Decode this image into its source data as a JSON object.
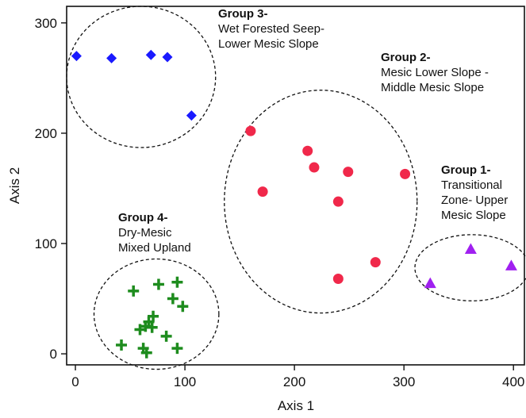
{
  "chart_data": {
    "type": "scatter",
    "title": "",
    "xlabel": "Axis 1",
    "ylabel": "Axis 2",
    "xlim": [
      -8,
      410
    ],
    "ylim": [
      -10,
      315
    ],
    "xticks": [
      "0",
      "100",
      "200",
      "300",
      "400"
    ],
    "yticks": [
      "0",
      "100",
      "200",
      "300"
    ],
    "grid": false,
    "legend": "none",
    "series": [
      {
        "key": "group1",
        "marker": "triangle",
        "color": "#a020f0",
        "title": "Group 1-",
        "lines": [
          "Transitional",
          "Zone- Upper",
          "Mesic Slope"
        ],
        "points": [
          [
            324,
            64
          ],
          [
            361,
            95
          ],
          [
            398,
            80
          ]
        ],
        "ellipse": {
          "cx": 362,
          "cy": 78,
          "rx": 52,
          "ry": 30
        }
      },
      {
        "key": "group2",
        "marker": "circle",
        "color": "#f0284a",
        "title": "Group 2-",
        "lines": [
          "Mesic Lower Slope -",
          "Middle Mesic Slope"
        ],
        "points": [
          [
            160,
            202
          ],
          [
            171,
            147
          ],
          [
            212,
            184
          ],
          [
            218,
            169
          ],
          [
            240,
            138
          ],
          [
            249,
            165
          ],
          [
            301,
            163
          ],
          [
            274,
            83
          ],
          [
            240,
            68
          ]
        ],
        "ellipse": {
          "cx": 224,
          "cy": 138,
          "rx": 88,
          "ry": 101
        }
      },
      {
        "key": "group3",
        "marker": "diamond",
        "color": "#1a1aff",
        "title": "Group 3-",
        "lines": [
          "Wet Forested Seep-",
          "Lower Mesic Slope"
        ],
        "points": [
          [
            1,
            270
          ],
          [
            33,
            268
          ],
          [
            69,
            271
          ],
          [
            84,
            269
          ],
          [
            106,
            216
          ]
        ],
        "ellipse": {
          "cx": 60,
          "cy": 251,
          "rx": 68,
          "ry": 64
        }
      },
      {
        "key": "group4",
        "marker": "plus",
        "color": "#1e8c1e",
        "title": "Group 4-",
        "lines": [
          "Dry-Mesic",
          "Mixed Upland"
        ],
        "points": [
          [
            53,
            57
          ],
          [
            76,
            63
          ],
          [
            93,
            65
          ],
          [
            89,
            50
          ],
          [
            98,
            43
          ],
          [
            59,
            22
          ],
          [
            64,
            25
          ],
          [
            70,
            24
          ],
          [
            71,
            34
          ],
          [
            67,
            29
          ],
          [
            83,
            16
          ],
          [
            42,
            8
          ],
          [
            93,
            5
          ],
          [
            62,
            5
          ],
          [
            65,
            1
          ]
        ],
        "ellipse": {
          "cx": 74,
          "cy": 36,
          "rx": 57,
          "ry": 50
        }
      }
    ]
  }
}
